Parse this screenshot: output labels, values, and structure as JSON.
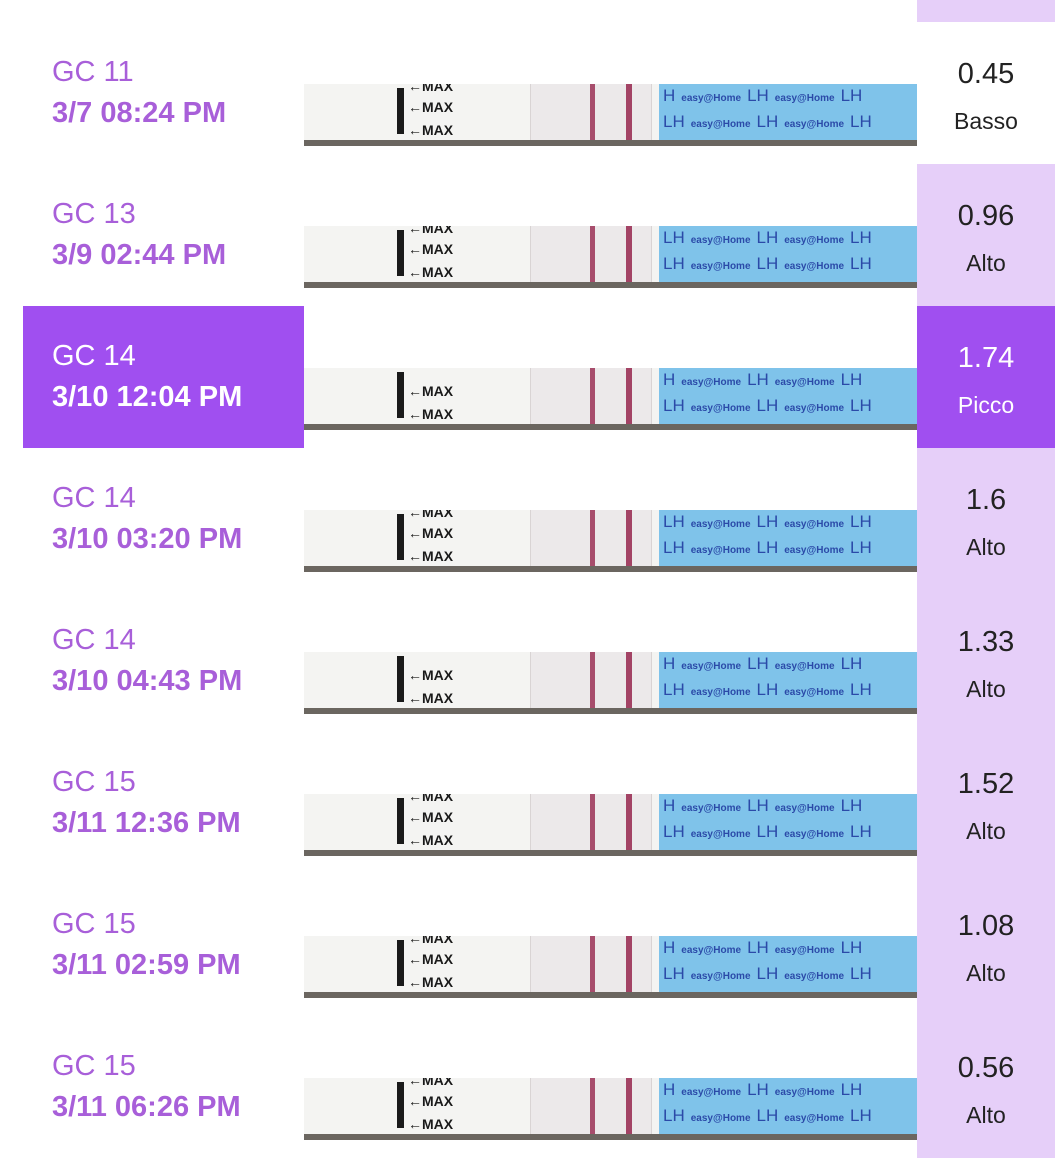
{
  "rows": [
    {
      "day": "GC 11",
      "time": "3/7   08:24 PM",
      "value": "0.45",
      "level": "Basso",
      "strip": {
        "max_marks": [
          "←MAX",
          "←MAX",
          "←MAX"
        ],
        "blue_row1": "H",
        "blue_row2": "LH",
        "brand": "easy@Home",
        "lh": "LH"
      }
    },
    {
      "day": "GC 13",
      "time": "3/9   02:44 PM",
      "value": "0.96",
      "level": "Alto",
      "strip": {
        "max_marks": [
          "←MAX",
          "←MAX",
          "←MAX"
        ],
        "blue_row1": "LH",
        "blue_row2": "LH",
        "brand": "easy@Home",
        "lh": "LH"
      }
    },
    {
      "day": "GC 14",
      "time": "3/10   12:04 PM",
      "value": "1.74",
      "level": "Picco",
      "highlight": true,
      "strip": {
        "max_marks": [
          "",
          "←MAX",
          "←MAX"
        ],
        "blue_row1": "H",
        "blue_row2": "LH",
        "brand": "easy@Home",
        "lh": "LH"
      }
    },
    {
      "day": "GC 14",
      "time": "3/10   03:20 PM",
      "value": "1.6",
      "level": "Alto",
      "strip": {
        "max_marks": [
          "←MAX",
          "←MAX",
          "←MAX"
        ],
        "blue_row1": "LH",
        "blue_row2": "LH",
        "brand": "easy@Home",
        "lh": "LH"
      }
    },
    {
      "day": "GC 14",
      "time": "3/10   04:43 PM",
      "value": "1.33",
      "level": "Alto",
      "strip": {
        "max_marks": [
          "",
          "←MAX",
          "←MAX"
        ],
        "blue_row1": "H",
        "blue_row2": "LH",
        "brand": "easy@Home",
        "lh": "LH"
      }
    },
    {
      "day": "GC 15",
      "time": "3/11   12:36 PM",
      "value": "1.52",
      "level": "Alto",
      "strip": {
        "max_marks": [
          "←MAX",
          "←MAX",
          "←MAX"
        ],
        "blue_row1": "H",
        "blue_row2": "LH",
        "brand": "easy@Home",
        "lh": "LH"
      }
    },
    {
      "day": "GC 15",
      "time": "3/11   02:59 PM",
      "value": "1.08",
      "level": "Alto",
      "strip": {
        "max_marks": [
          "←MAX",
          "←MAX",
          "←MAX"
        ],
        "blue_row1": "H",
        "blue_row2": "LH",
        "brand": "easy@Home",
        "lh": "LH"
      }
    },
    {
      "day": "GC 15",
      "time": "3/11   06:26 PM",
      "value": "0.56",
      "level": "Alto",
      "strip": {
        "max_marks": [
          "←MAX",
          "←MAX",
          "←MAX"
        ],
        "blue_row1": "H",
        "blue_row2": "LH",
        "brand": "easy@Home",
        "lh": "LH"
      }
    }
  ],
  "colors": {
    "accent": "#a04ff0",
    "accent_text": "#a85fd9",
    "cell_tint": "#e6cff9",
    "test_line": "#9b3156",
    "strip_blue": "#7fc3ea"
  }
}
